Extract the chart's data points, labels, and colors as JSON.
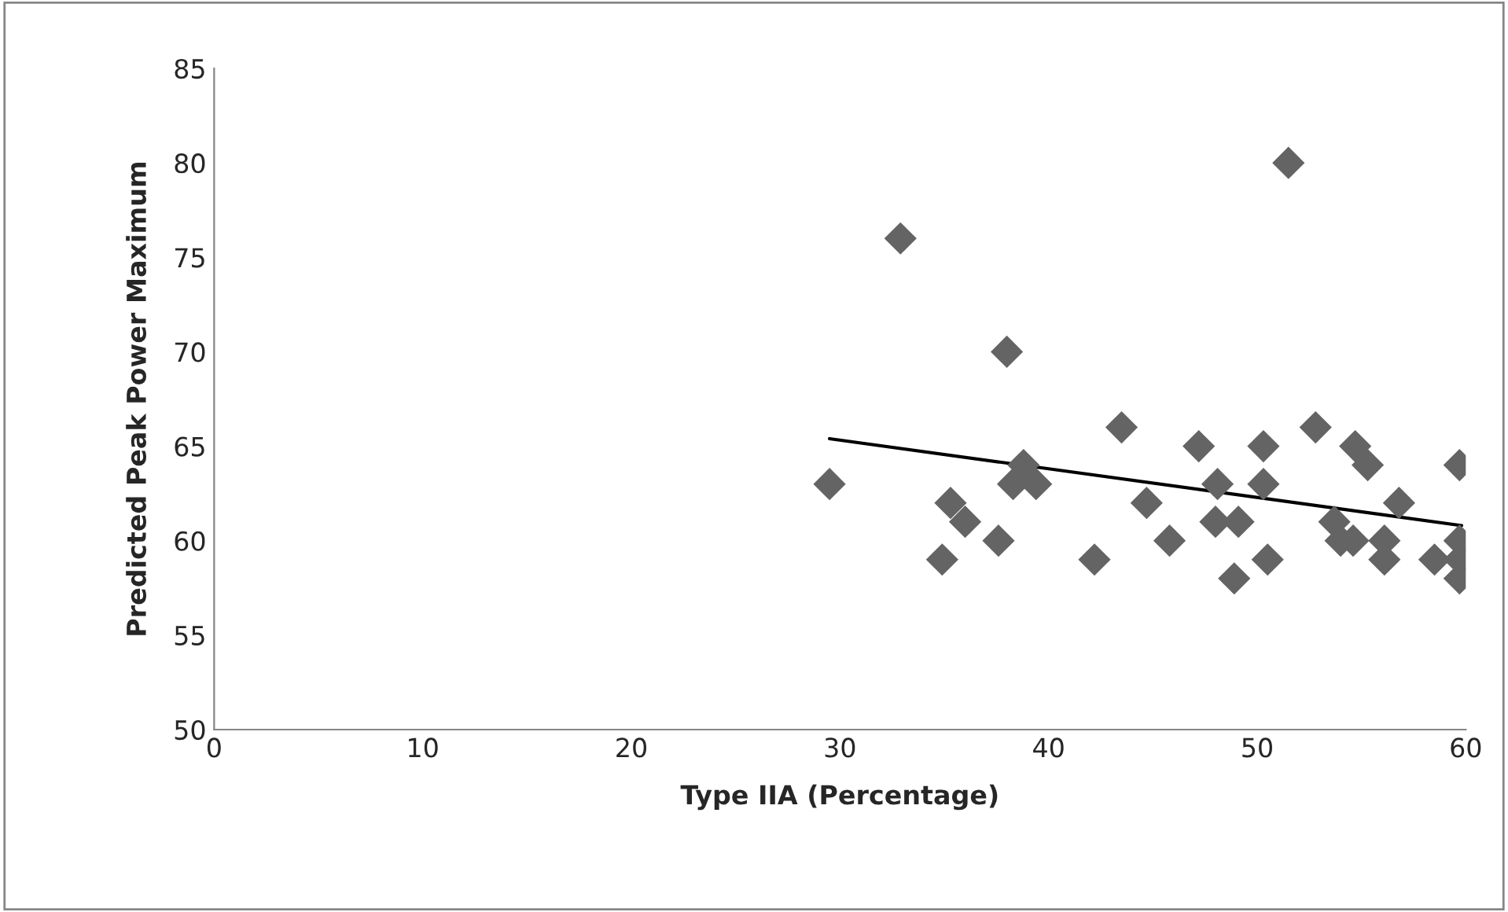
{
  "chart_data": {
    "type": "scatter",
    "xlabel": "Type IIA (Percentage)",
    "ylabel": "Predicted Peak Power Maximum",
    "xlim": [
      0,
      60
    ],
    "xticks": [
      0,
      10,
      20,
      30,
      40,
      50,
      60
    ],
    "ylim": [
      50,
      85
    ],
    "yticks": [
      50,
      55,
      60,
      65,
      70,
      75,
      80,
      85
    ],
    "grid": false,
    "legend": false,
    "marker": "diamond",
    "series": [
      {
        "color": "#646464",
        "x": [
          29.5,
          32.9,
          34.9,
          35.3,
          36.0,
          37.6,
          38.0,
          38.3,
          38.8,
          39.4,
          42.2,
          43.5,
          44.7,
          45.8,
          47.2,
          48.0,
          48.1,
          48.9,
          49.1,
          50.3,
          50.3,
          50.5,
          51.5,
          52.8,
          53.7,
          54.6,
          54.7,
          55.3,
          54.0,
          56.1,
          56.1,
          56.8,
          58.5,
          59.7,
          59.7,
          59.7,
          59.7
        ],
        "values": [
          63,
          76,
          59,
          62,
          61,
          60,
          70,
          63,
          64,
          63,
          59,
          66,
          62,
          60,
          65,
          61,
          63,
          58,
          61,
          65,
          63,
          59,
          80,
          66,
          61,
          60,
          65,
          64,
          60,
          60,
          59,
          62,
          59,
          64,
          60,
          59,
          58
        ]
      },
      {
        "type": "line",
        "color": "#000000",
        "marker": "none",
        "x": [
          29.5,
          59.8
        ],
        "values": [
          65.4,
          60.8
        ]
      }
    ]
  }
}
